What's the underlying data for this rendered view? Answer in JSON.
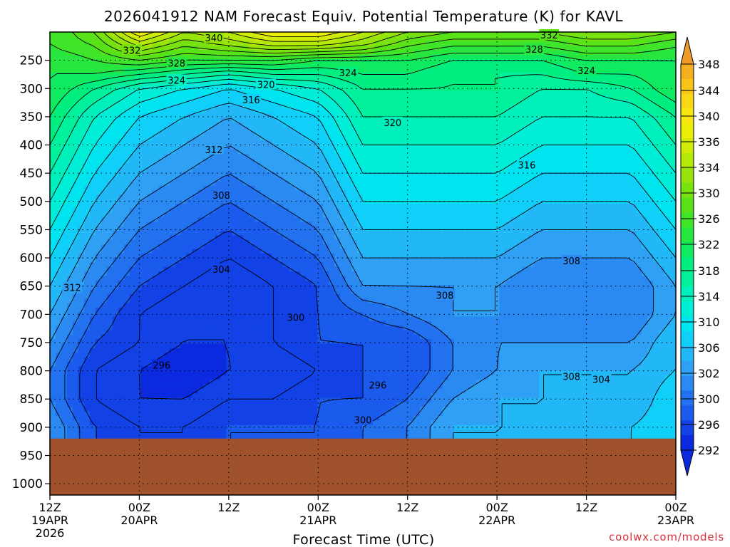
{
  "title": "2026041912 NAM Forecast Equiv. Potential Temperature (K) for KAVL",
  "credit": "coolwx.com/models",
  "chart_data": {
    "type": "heatmap",
    "title": "2026041912 NAM Forecast Equiv. Potential Temperature (K) for KAVL",
    "xlabel": "Forecast Time (UTC)",
    "ylabel": "",
    "grid": true,
    "legend": "right",
    "x_ticks": [
      {
        "hour": 0,
        "time": "12Z",
        "date": "19APR",
        "year": "2026"
      },
      {
        "hour": 12,
        "time": "00Z",
        "date": "20APR",
        "year": ""
      },
      {
        "hour": 24,
        "time": "12Z",
        "date": "",
        "year": ""
      },
      {
        "hour": 36,
        "time": "00Z",
        "date": "21APR",
        "year": ""
      },
      {
        "hour": 48,
        "time": "12Z",
        "date": "",
        "year": ""
      },
      {
        "hour": 60,
        "time": "00Z",
        "date": "22APR",
        "year": ""
      },
      {
        "hour": 72,
        "time": "12Z",
        "date": "",
        "year": ""
      },
      {
        "hour": 84,
        "time": "00Z",
        "date": "23APR",
        "year": ""
      }
    ],
    "x_range_hours": [
      0,
      84
    ],
    "y_ticks_hpa": [
      250,
      300,
      350,
      400,
      450,
      500,
      550,
      600,
      650,
      700,
      750,
      800,
      850,
      900,
      950,
      1000
    ],
    "y_range_hpa": [
      200,
      1020
    ],
    "surface_pressure_hpa": 920,
    "colorbar_levels": [
      292,
      296,
      300,
      302,
      304,
      306,
      308,
      310,
      312,
      314,
      316,
      318,
      320,
      322,
      324,
      326,
      328,
      330,
      332,
      334,
      336,
      338,
      340,
      342,
      344,
      346,
      348
    ],
    "colorbar_labels": [
      "292",
      "296",
      "300",
      "302",
      "304",
      "306",
      "308",
      "310",
      "312",
      "314",
      "316",
      "318",
      "320",
      "322",
      "324",
      "326",
      "328",
      "330",
      "332",
      "334",
      "336",
      "338",
      "340",
      "342",
      "344",
      "346",
      "348"
    ],
    "colorbar_colors": [
      "#0b2ae0",
      "#1242e6",
      "#1a5aec",
      "#2272f0",
      "#2b8af2",
      "#30a0f4",
      "#22b8f8",
      "#10d0fa",
      "#00e4f0",
      "#00eed8",
      "#00f0bc",
      "#00f09c",
      "#00ee80",
      "#10ea60",
      "#28e640",
      "#40e428",
      "#5ae218",
      "#78e210",
      "#96e40a",
      "#b4e808",
      "#d2ec08",
      "#ecee08",
      "#f8e810",
      "#fad818",
      "#f8c418",
      "#f4b020",
      "#f09a28"
    ],
    "surface_color": "#a0522d",
    "series": [
      {
        "hours": [
          0,
          6,
          12,
          18,
          24,
          30,
          36,
          42,
          48,
          54,
          60,
          66,
          72,
          78,
          84
        ],
        "values": [
          [
            326,
            330,
            340,
            334,
            336,
            340,
            340,
            336,
            332,
            330,
            330,
            330,
            332,
            332,
            330
          ],
          [
            326,
            328,
            334,
            330,
            332,
            334,
            334,
            332,
            328,
            326,
            326,
            326,
            328,
            328,
            326
          ],
          [
            324,
            326,
            328,
            326,
            326,
            326,
            324,
            324,
            324,
            322,
            322,
            322,
            324,
            324,
            324
          ],
          [
            324,
            324,
            322,
            320,
            318,
            320,
            320,
            322,
            322,
            320,
            320,
            320,
            322,
            322,
            324
          ],
          [
            324,
            320,
            316,
            314,
            312,
            314,
            316,
            320,
            320,
            320,
            320,
            318,
            318,
            320,
            324
          ],
          [
            322,
            316,
            312,
            310,
            308,
            310,
            312,
            318,
            318,
            318,
            318,
            316,
            316,
            316,
            320
          ],
          [
            320,
            314,
            310,
            308,
            306,
            308,
            310,
            316,
            316,
            316,
            316,
            314,
            314,
            314,
            318
          ],
          [
            318,
            312,
            308,
            306,
            304,
            306,
            308,
            314,
            314,
            314,
            314,
            312,
            312,
            312,
            316
          ],
          [
            316,
            310,
            306,
            304,
            302,
            304,
            306,
            312,
            312,
            312,
            312,
            310,
            310,
            310,
            314
          ],
          [
            314,
            308,
            304,
            302,
            300,
            302,
            304,
            310,
            310,
            310,
            310,
            308,
            308,
            308,
            312
          ],
          [
            312,
            306,
            302,
            300,
            298,
            300,
            302,
            308,
            308,
            308,
            308,
            306,
            306,
            306,
            310
          ],
          [
            310,
            304,
            300,
            298,
            296,
            298,
            300,
            306,
            306,
            306,
            306,
            304,
            304,
            304,
            308
          ],
          [
            308,
            302,
            298,
            296,
            296,
            298,
            300,
            302,
            304,
            306,
            306,
            304,
            304,
            304,
            308
          ],
          [
            306,
            300,
            298,
            296,
            296,
            298,
            300,
            300,
            300,
            304,
            306,
            306,
            306,
            306,
            310
          ],
          [
            304,
            298,
            296,
            294,
            296,
            296,
            298,
            300,
            300,
            304,
            306,
            308,
            308,
            308,
            310
          ],
          [
            304,
            298,
            296,
            296,
            298,
            298,
            300,
            300,
            302,
            306,
            308,
            308,
            308,
            308,
            312
          ],
          [
            306,
            300,
            298,
            298,
            300,
            300,
            300,
            302,
            304,
            308,
            308,
            308,
            308,
            310,
            312
          ]
        ],
        "levels_hpa": [
          200,
          225,
          250,
          275,
          300,
          350,
          400,
          450,
          500,
          550,
          600,
          650,
          700,
          750,
          800,
          850,
          900
        ]
      }
    ],
    "contour_labels": [
      {
        "text": "340",
        "hour": 22,
        "hpa": 210
      },
      {
        "text": "332",
        "hour": 11,
        "hpa": 232
      },
      {
        "text": "332",
        "hour": 67,
        "hpa": 205
      },
      {
        "text": "328",
        "hour": 17,
        "hpa": 255
      },
      {
        "text": "328",
        "hour": 65,
        "hpa": 230
      },
      {
        "text": "324",
        "hour": 17,
        "hpa": 285
      },
      {
        "text": "324",
        "hour": 40,
        "hpa": 272
      },
      {
        "text": "324",
        "hour": 72,
        "hpa": 268
      },
      {
        "text": "320",
        "hour": 29,
        "hpa": 293
      },
      {
        "text": "320",
        "hour": 46,
        "hpa": 360
      },
      {
        "text": "316",
        "hour": 27,
        "hpa": 320
      },
      {
        "text": "316",
        "hour": 64,
        "hpa": 435
      },
      {
        "text": "312",
        "hour": 22,
        "hpa": 408
      },
      {
        "text": "312",
        "hour": 3,
        "hpa": 652
      },
      {
        "text": "308",
        "hour": 23,
        "hpa": 489
      },
      {
        "text": "308",
        "hour": 70,
        "hpa": 605
      },
      {
        "text": "308",
        "hour": 53,
        "hpa": 666
      },
      {
        "text": "308",
        "hour": 70,
        "hpa": 810
      },
      {
        "text": "304",
        "hour": 23,
        "hpa": 620
      },
      {
        "text": "304",
        "hour": 74,
        "hpa": 815
      },
      {
        "text": "300",
        "hour": 33,
        "hpa": 705
      },
      {
        "text": "300",
        "hour": 42,
        "hpa": 887
      },
      {
        "text": "296",
        "hour": 15,
        "hpa": 790
      },
      {
        "text": "296",
        "hour": 44,
        "hpa": 825
      }
    ]
  }
}
